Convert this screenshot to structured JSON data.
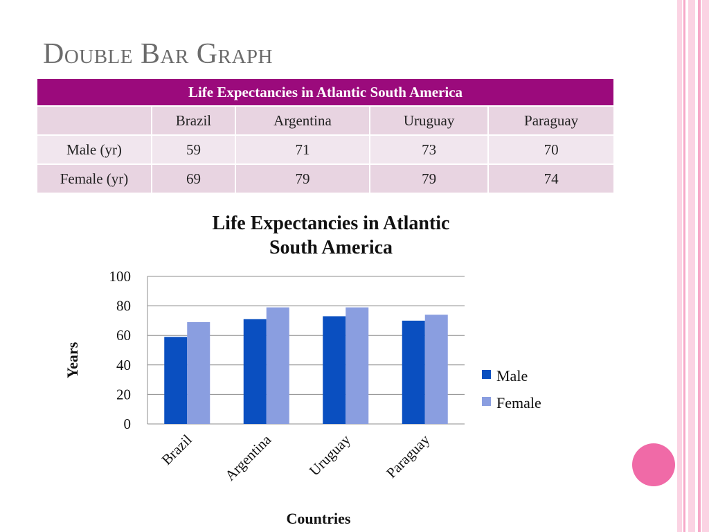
{
  "slide": {
    "title": "Double Bar Graph"
  },
  "table": {
    "caption": "Life Expectancies in Atlantic South America",
    "columns": [
      "",
      "Brazil",
      "Argentina",
      "Uruguay",
      "Paraguay"
    ],
    "rows": [
      {
        "label": "Male (yr)",
        "values": [
          "59",
          "71",
          "73",
          "70"
        ]
      },
      {
        "label": "Female (yr)",
        "values": [
          "69",
          "79",
          "79",
          "74"
        ]
      }
    ]
  },
  "colors": {
    "header_bg": "#9b0a7c",
    "male": "#0a4fc0",
    "female": "#8a9ee0",
    "accent_pink": "#f06aa7"
  },
  "chart_data": {
    "type": "bar",
    "title_lines": [
      "Life Expectancies in Atlantic",
      "South America"
    ],
    "categories": [
      "Brazil",
      "Argentina",
      "Uruguay",
      "Paraguay"
    ],
    "series": [
      {
        "name": "Male",
        "values": [
          59,
          71,
          73,
          70
        ],
        "color": "#0a4fc0"
      },
      {
        "name": "Female",
        "values": [
          69,
          79,
          79,
          74
        ],
        "color": "#8a9ee0"
      }
    ],
    "xlabel": "Countries",
    "ylabel": "Years",
    "ylim": [
      0,
      100
    ],
    "yticks": [
      0,
      20,
      40,
      60,
      80,
      100
    ],
    "grid": true,
    "legend_position": "right"
  }
}
